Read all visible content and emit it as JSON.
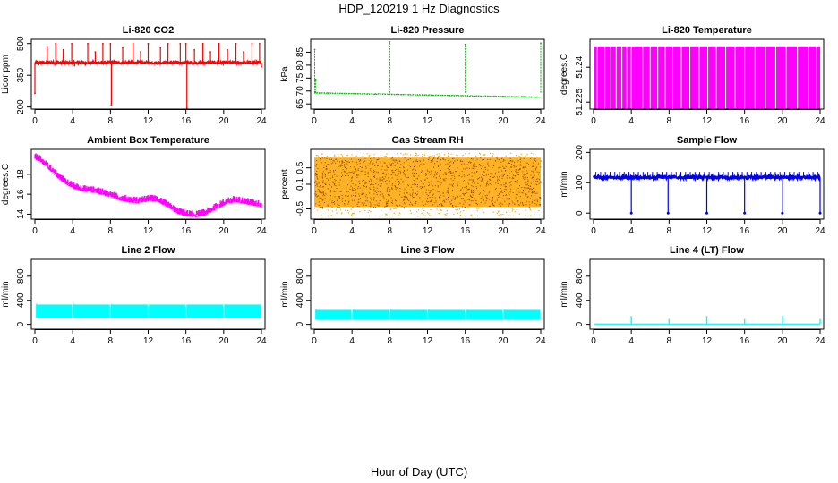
{
  "figure": {
    "title": "HDP_120219  1 Hz Diagnostics",
    "xlabel": "Hour of Day (UTC)"
  },
  "chart_data": [
    {
      "type": "line",
      "title": "Li-820 CO2",
      "ylabel": "Licor ppm",
      "color": "#ff0000",
      "xlim": [
        0,
        24
      ],
      "ylim": [
        190,
        520
      ],
      "xticks": [
        0,
        4,
        8,
        12,
        16,
        20,
        24
      ],
      "yticks": [
        200,
        350,
        500
      ],
      "baseline": 410,
      "noise": 6,
      "series": [
        {
          "name": "CO2",
          "x": [
            0,
            0.25,
            0.5,
            1.3,
            2.2,
            3.0,
            3.9,
            4.2,
            5.6,
            6.4,
            7.2,
            8.0,
            8.1,
            9.3,
            10.4,
            11.2,
            12.0,
            13.3,
            14.1,
            15.4,
            16.0,
            16.1,
            16.9,
            17.8,
            18.6,
            19.5,
            20.4,
            21.3,
            22.1,
            23.0,
            23.8,
            24
          ],
          "y": [
            265,
            410,
            410,
            485,
            500,
            470,
            500,
            395,
            500,
            460,
            500,
            500,
            210,
            480,
            500,
            460,
            500,
            480,
            500,
            500,
            500,
            190,
            470,
            500,
            460,
            500,
            470,
            500,
            460,
            500,
            500,
            390
          ]
        }
      ]
    },
    {
      "type": "line",
      "title": "Li-820 Pressure",
      "ylabel": "kPa",
      "color": "#00bb00",
      "xlim": [
        0,
        24
      ],
      "ylim": [
        63,
        90
      ],
      "xticks": [
        0,
        4,
        8,
        12,
        16,
        20,
        24
      ],
      "yticks": [
        65,
        70,
        75,
        80,
        85
      ],
      "baseline_start": 69.3,
      "baseline_end": 67.6,
      "noise": 0.2,
      "series": [
        {
          "name": "pressure",
          "x": [
            0.05,
            0.15,
            8.0,
            16.0,
            16.05,
            24.0
          ],
          "y": [
            86.0,
            74.5,
            89.0,
            88.0,
            87.5,
            88.5
          ]
        }
      ]
    },
    {
      "type": "bar",
      "title": "Li-820 Temperature",
      "ylabel": "degrees.C",
      "color": "#ff00ff",
      "xlim": [
        0,
        24
      ],
      "ylim": [
        51.222,
        51.252
      ],
      "xticks": [
        0,
        4,
        8,
        12,
        16,
        20,
        24
      ],
      "yticks": [
        51.225,
        51.24
      ],
      "fill_from": 51.222,
      "fill_to": 51.249,
      "gaps": [
        0.4,
        1.2,
        1.8,
        2.4,
        3.0,
        3.5,
        4.0,
        4.6,
        5.2,
        6.0,
        6.8,
        7.6,
        8.4,
        9.3,
        10.2,
        11.2,
        12.1,
        13.0,
        14.0,
        15.0,
        16.0,
        17.1,
        18.2,
        19.3,
        20.4,
        21.6,
        22.8,
        23.6
      ]
    },
    {
      "type": "line",
      "title": "Ambient Box Temperature",
      "ylabel": "degrees.C",
      "color": "#ff00ff",
      "xlim": [
        0,
        24
      ],
      "ylim": [
        13.5,
        20.5
      ],
      "xticks": [
        0,
        4,
        8,
        12,
        16,
        20,
        24
      ],
      "yticks": [
        14,
        16,
        18
      ],
      "noise": 0.35,
      "series": [
        {
          "name": "box_temp",
          "x": [
            0,
            0.5,
            1,
            2,
            3,
            4,
            5,
            6,
            7,
            8,
            9,
            10,
            11,
            12,
            13,
            14,
            15,
            16,
            17,
            18,
            19,
            20,
            21,
            22,
            23,
            24
          ],
          "y": [
            19.8,
            19.6,
            19.2,
            18.3,
            17.5,
            16.9,
            16.6,
            16.5,
            16.3,
            16.0,
            15.7,
            15.5,
            15.4,
            15.6,
            15.6,
            15.0,
            14.4,
            14.1,
            14.0,
            14.2,
            14.7,
            15.2,
            15.5,
            15.4,
            15.2,
            15.0
          ]
        }
      ]
    },
    {
      "type": "scatter",
      "title": "Gas Stream RH",
      "ylabel": "percent",
      "color": "#ffa500",
      "secondary_color": "#8b4500",
      "xlim": [
        0,
        24
      ],
      "ylim": [
        -0.75,
        0.95
      ],
      "xticks": [
        0,
        4,
        8,
        12,
        16,
        20,
        24
      ],
      "yticks": [
        -0.5,
        0.1,
        0.5
      ],
      "band_low": -0.45,
      "band_high": 0.75
    },
    {
      "type": "line",
      "title": "Sample Flow",
      "ylabel": "ml/min",
      "color": "#0000ee",
      "xlim": [
        0,
        24
      ],
      "ylim": [
        -20,
        210
      ],
      "xticks": [
        0,
        4,
        8,
        12,
        16,
        20,
        24
      ],
      "yticks": [
        0,
        100,
        200
      ],
      "baseline": 118,
      "noise": 5,
      "dip_value": 0,
      "series": [
        {
          "name": "dips",
          "x": [
            4.0,
            7.9,
            12.0,
            16.0,
            20.0,
            24.0
          ],
          "y": [
            0,
            0,
            0,
            0,
            0,
            0
          ]
        }
      ]
    },
    {
      "type": "area",
      "title": "Line 2 Flow",
      "ylabel": "ml/min",
      "color": "#00ffff",
      "xlim": [
        0,
        24
      ],
      "ylim": [
        -80,
        1080
      ],
      "xticks": [
        0,
        4,
        8,
        12,
        16,
        20,
        24
      ],
      "yticks": [
        0,
        400,
        800
      ],
      "band_low": 110,
      "band_high": 330,
      "series": [
        {
          "name": "spikes",
          "x": [
            0.05,
            4.0,
            8.0,
            12.0,
            16.0,
            20.0,
            24.0
          ],
          "y": [
            350,
            340,
            345,
            335,
            330,
            335,
            330
          ]
        }
      ]
    },
    {
      "type": "area",
      "title": "Line 3 Flow",
      "ylabel": "ml/min",
      "color": "#00ffff",
      "xlim": [
        0,
        24
      ],
      "ylim": [
        -80,
        1080
      ],
      "xticks": [
        0,
        4,
        8,
        12,
        16,
        20,
        24
      ],
      "yticks": [
        0,
        400,
        800
      ],
      "band_low": 80,
      "band_high": 240,
      "series": [
        {
          "name": "spikes",
          "x": [
            0.05,
            4.0,
            8.0,
            12.0,
            16.0,
            20.0,
            24.0
          ],
          "y": [
            260,
            250,
            255,
            250,
            245,
            250,
            245
          ]
        }
      ]
    },
    {
      "type": "line",
      "title": "Line 4 (LT) Flow",
      "ylabel": "ml/min",
      "color": "#00ffff",
      "xlim": [
        0,
        24
      ],
      "ylim": [
        -80,
        1080
      ],
      "xticks": [
        0,
        4,
        8,
        12,
        16,
        20,
        24
      ],
      "yticks": [
        0,
        400,
        800
      ],
      "baseline": 5,
      "series": [
        {
          "name": "spikes",
          "x": [
            4.0,
            8.0,
            12.0,
            16.0,
            20.0,
            24.0
          ],
          "y": [
            140,
            90,
            140,
            90,
            150,
            90
          ]
        }
      ]
    }
  ]
}
